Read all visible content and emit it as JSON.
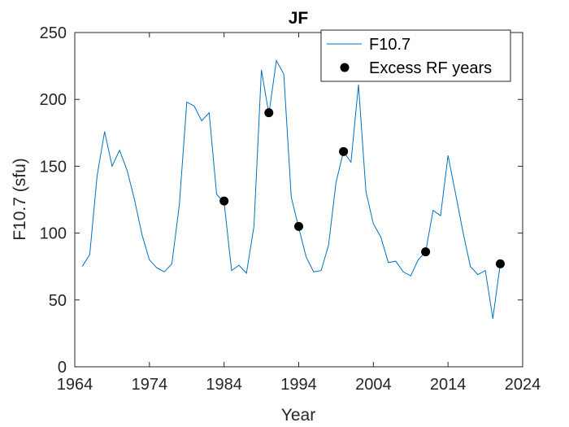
{
  "chart_data": {
    "type": "line",
    "title": "JF",
    "xlabel": "Year",
    "ylabel": "F10.7 (sfu)",
    "xlim": [
      1964,
      2024
    ],
    "ylim": [
      0,
      250
    ],
    "xticks": [
      1964,
      1974,
      1984,
      1994,
      2004,
      2014,
      2024
    ],
    "yticks": [
      0,
      50,
      100,
      150,
      200,
      250
    ],
    "xtick_labels": [
      "1964",
      "1974",
      "1984",
      "1994",
      "2004",
      "2014",
      "2024"
    ],
    "ytick_labels": [
      "0",
      "50",
      "100",
      "150",
      "200",
      "250"
    ],
    "legend_position": "top-right",
    "series": [
      {
        "name": "F10.7",
        "style": "line",
        "color": "#0072BD",
        "x": [
          1965,
          1966,
          1967,
          1968,
          1969,
          1970,
          1971,
          1972,
          1973,
          1974,
          1975,
          1976,
          1977,
          1978,
          1979,
          1980,
          1981,
          1982,
          1983,
          1984,
          1985,
          1986,
          1987,
          1988,
          1989,
          1990,
          1991,
          1992,
          1993,
          1994,
          1995,
          1996,
          1997,
          1998,
          1999,
          2000,
          2001,
          2002,
          2003,
          2004,
          2005,
          2006,
          2007,
          2008,
          2009,
          2010,
          2011,
          2012,
          2013,
          2014,
          2015,
          2016,
          2017,
          2018,
          2019,
          2020,
          2021
        ],
        "y": [
          75,
          84,
          143,
          176,
          150,
          162,
          147,
          125,
          99,
          80,
          74,
          71,
          77,
          121,
          198,
          195,
          184,
          190,
          129,
          123,
          72,
          76,
          70,
          105,
          222,
          189,
          229,
          219,
          127,
          104,
          82,
          71,
          72,
          91,
          138,
          161,
          153,
          211,
          131,
          107,
          97,
          78,
          79,
          71,
          68,
          80,
          86,
          117,
          113,
          158,
          130,
          101,
          75,
          69,
          72,
          36,
          77
        ]
      },
      {
        "name": "Excess RF years",
        "style": "markers",
        "color": "#000000",
        "x": [
          1984,
          1990,
          1994,
          2000,
          2011,
          2021
        ],
        "y": [
          124,
          190,
          105,
          161,
          86,
          77
        ]
      }
    ]
  }
}
